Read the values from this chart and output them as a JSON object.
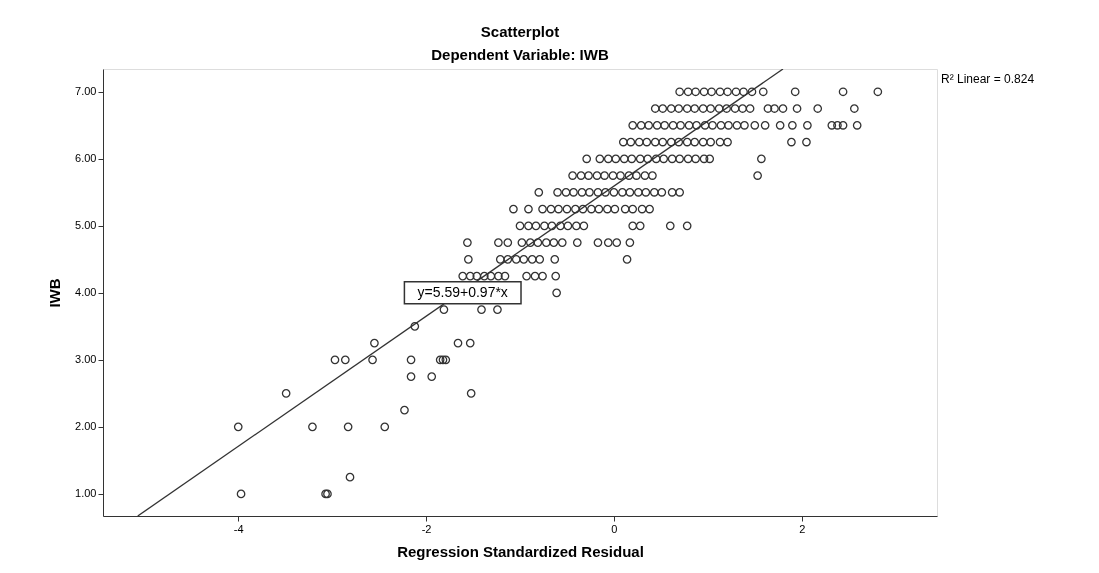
{
  "chart_data": {
    "type": "scatter",
    "title": "Scatterplot",
    "subtitle": "Dependent Variable: IWB",
    "xlabel": "Regression Standardized Residual",
    "ylabel": "IWB",
    "xlim": [
      -5.44,
      3.44
    ],
    "ylim": [
      0.67,
      7.34
    ],
    "xticks": [
      -4,
      -2,
      0,
      2
    ],
    "yticks": [
      {
        "value": 1,
        "label": "1.00"
      },
      {
        "value": 2,
        "label": "2.00"
      },
      {
        "value": 3,
        "label": "3.00"
      },
      {
        "value": 4,
        "label": "4.00"
      },
      {
        "value": 5,
        "label": "5.00"
      },
      {
        "value": 6,
        "label": "6.00"
      },
      {
        "value": 7,
        "label": "7.00"
      }
    ],
    "grid": false,
    "annotations": [
      "R² Linear = 0.824",
      {
        "text": "y=5.59+0.97*x",
        "x": -1.61,
        "y": 4.0
      }
    ],
    "series": [
      {
        "color": "#333333",
        "marker": "circle",
        "x": [
          -3.97,
          -3.07,
          -3.05,
          -2.81,
          -4.0,
          -3.21,
          -2.83,
          -2.44,
          -2.23,
          -3.49,
          -1.52,
          -2.16,
          -1.94,
          -2.97,
          -2.86,
          -2.57,
          -2.16,
          -1.85,
          -1.82,
          -1.79,
          -2.55,
          -1.66,
          -1.53,
          -2.12,
          -1.81,
          -1.41,
          -1.24,
          -0.61,
          -1.61,
          -1.53,
          -1.46,
          -1.38,
          -1.31,
          -1.23,
          -1.16,
          -0.93,
          -0.84,
          -0.76,
          -0.62,
          -1.55,
          -1.21,
          -1.13,
          -1.04,
          -0.96,
          -0.87,
          -0.79,
          -0.63,
          0.14,
          -1.56,
          -1.23,
          -1.13,
          -0.98,
          -0.89,
          -0.81,
          -0.72,
          -0.64,
          -0.55,
          -0.39,
          -0.17,
          -0.06,
          0.03,
          0.17,
          -1.0,
          -0.91,
          -0.83,
          -0.74,
          -0.66,
          -0.57,
          -0.49,
          -0.4,
          -0.32,
          0.2,
          0.28,
          0.6,
          0.78,
          -1.07,
          -0.91,
          -0.76,
          -0.67,
          -0.59,
          -0.5,
          -0.41,
          -0.33,
          -0.24,
          -0.16,
          -0.07,
          0.01,
          0.12,
          0.2,
          0.3,
          0.38,
          -0.8,
          -0.6,
          -0.51,
          -0.43,
          -0.34,
          -0.26,
          -0.17,
          -0.09,
          0.0,
          0.09,
          0.17,
          0.26,
          0.34,
          0.43,
          0.51,
          0.62,
          0.7,
          -0.44,
          -0.35,
          -0.27,
          -0.18,
          -0.1,
          -0.01,
          0.07,
          0.16,
          0.24,
          0.33,
          0.41,
          1.53,
          -0.29,
          -0.15,
          -0.06,
          0.02,
          0.11,
          0.19,
          0.28,
          0.36,
          0.45,
          0.53,
          0.62,
          0.7,
          0.79,
          0.87,
          0.96,
          1.02,
          1.57,
          0.1,
          0.18,
          0.27,
          0.35,
          0.44,
          0.52,
          0.61,
          0.69,
          0.78,
          0.86,
          0.95,
          1.03,
          1.13,
          1.21,
          1.89,
          2.05,
          0.2,
          0.29,
          0.37,
          0.46,
          0.54,
          0.63,
          0.71,
          0.8,
          0.88,
          0.97,
          1.05,
          1.14,
          1.22,
          1.31,
          1.39,
          1.5,
          1.61,
          1.77,
          1.9,
          2.06,
          2.32,
          2.38,
          2.44,
          2.59,
          0.44,
          0.52,
          0.61,
          0.69,
          0.78,
          0.86,
          0.95,
          1.03,
          1.12,
          1.2,
          1.29,
          1.37,
          1.45,
          1.64,
          1.71,
          1.8,
          1.95,
          2.17,
          2.56,
          0.7,
          0.79,
          0.87,
          0.96,
          1.04,
          1.13,
          1.21,
          1.3,
          1.38,
          1.47,
          1.59,
          1.93,
          2.44,
          2.81
        ],
        "values": [
          1,
          1,
          1,
          1.25,
          2,
          2,
          2,
          2,
          2.25,
          2.5,
          2.5,
          2.75,
          2.75,
          3,
          3,
          3,
          3,
          3,
          3,
          3,
          3.25,
          3.25,
          3.25,
          3.5,
          3.75,
          3.75,
          3.75,
          4,
          4.25,
          4.25,
          4.25,
          4.25,
          4.25,
          4.25,
          4.25,
          4.25,
          4.25,
          4.25,
          4.25,
          4.5,
          4.5,
          4.5,
          4.5,
          4.5,
          4.5,
          4.5,
          4.5,
          4.5,
          4.75,
          4.75,
          4.75,
          4.75,
          4.75,
          4.75,
          4.75,
          4.75,
          4.75,
          4.75,
          4.75,
          4.75,
          4.75,
          4.75,
          5,
          5,
          5,
          5,
          5,
          5,
          5,
          5,
          5,
          5,
          5,
          5,
          5,
          5.25,
          5.25,
          5.25,
          5.25,
          5.25,
          5.25,
          5.25,
          5.25,
          5.25,
          5.25,
          5.25,
          5.25,
          5.25,
          5.25,
          5.25,
          5.25,
          5.5,
          5.5,
          5.5,
          5.5,
          5.5,
          5.5,
          5.5,
          5.5,
          5.5,
          5.5,
          5.5,
          5.5,
          5.5,
          5.5,
          5.5,
          5.5,
          5.5,
          5.75,
          5.75,
          5.75,
          5.75,
          5.75,
          5.75,
          5.75,
          5.75,
          5.75,
          5.75,
          5.75,
          5.75,
          6,
          6,
          6,
          6,
          6,
          6,
          6,
          6,
          6,
          6,
          6,
          6,
          6,
          6,
          6,
          6,
          6,
          6.25,
          6.25,
          6.25,
          6.25,
          6.25,
          6.25,
          6.25,
          6.25,
          6.25,
          6.25,
          6.25,
          6.25,
          6.25,
          6.25,
          6.25,
          6.25,
          6.5,
          6.5,
          6.5,
          6.5,
          6.5,
          6.5,
          6.5,
          6.5,
          6.5,
          6.5,
          6.5,
          6.5,
          6.5,
          6.5,
          6.5,
          6.5,
          6.5,
          6.5,
          6.5,
          6.5,
          6.5,
          6.5,
          6.5,
          6.5,
          6.75,
          6.75,
          6.75,
          6.75,
          6.75,
          6.75,
          6.75,
          6.75,
          6.75,
          6.75,
          6.75,
          6.75,
          6.75,
          6.75,
          6.75,
          6.75,
          6.75,
          6.75,
          6.75,
          7,
          7,
          7,
          7,
          7,
          7,
          7,
          7,
          7,
          7,
          7,
          7,
          7,
          7
        ]
      },
      {
        "type": "line",
        "color": "#333333",
        "x": [
          -5.07,
          1.8
        ],
        "values": [
          0.67,
          7.34
        ]
      }
    ]
  }
}
